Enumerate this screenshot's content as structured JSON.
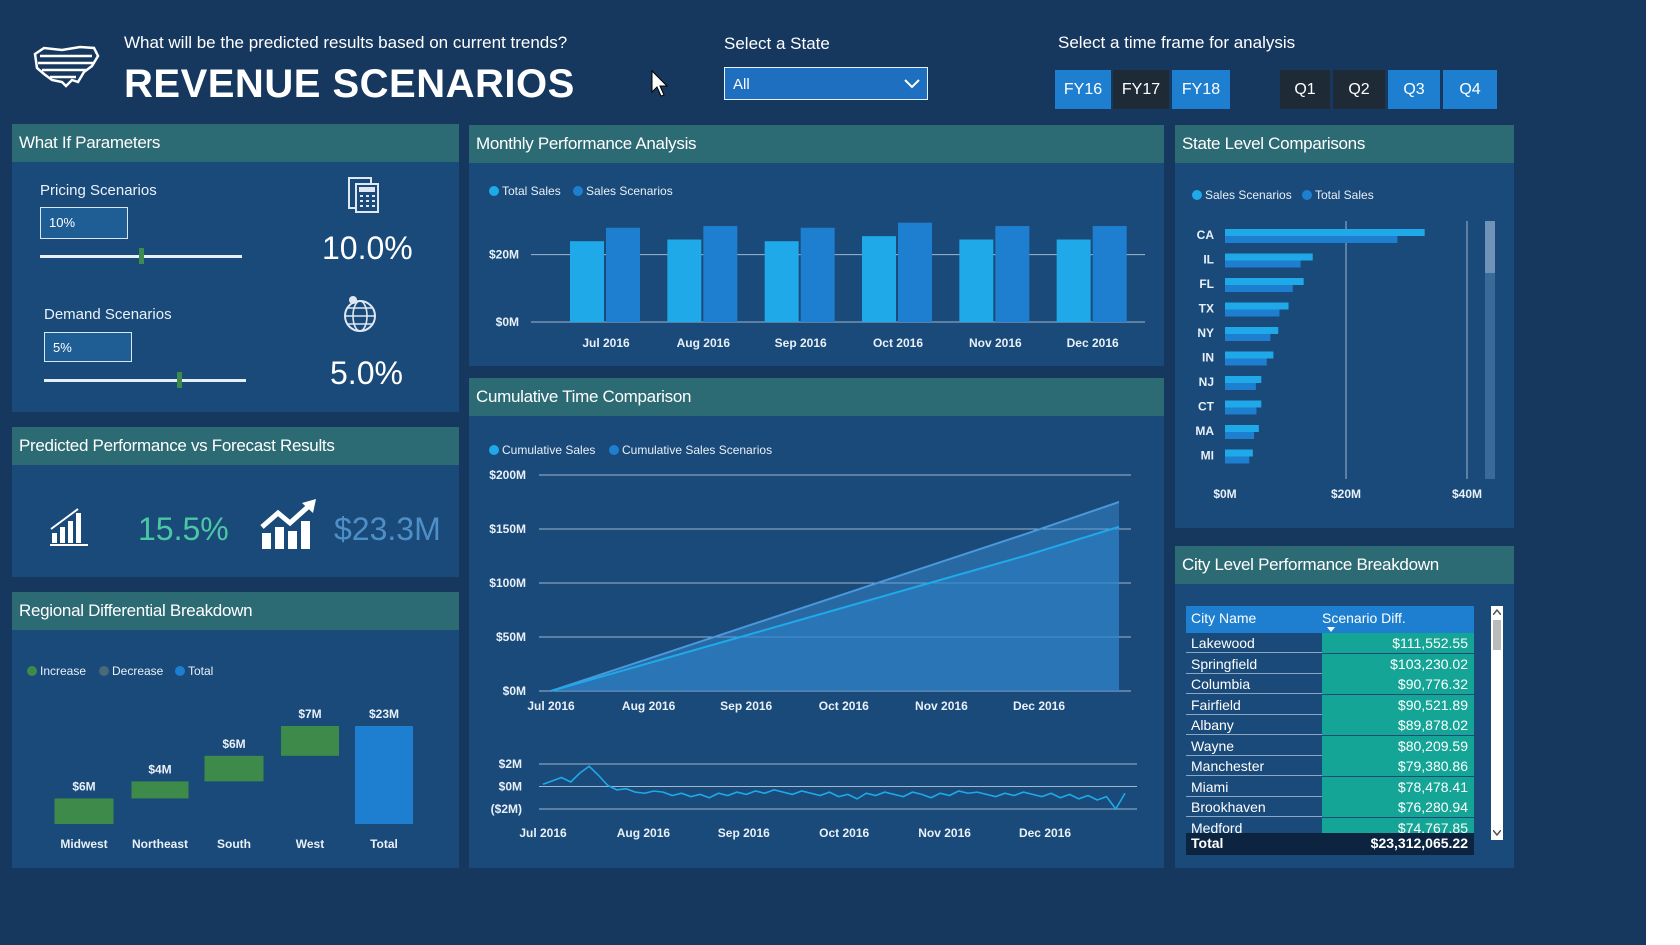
{
  "header": {
    "question": "What will be the predicted results based on current trends?",
    "title": "REVENUE SCENARIOS",
    "state_label": "Select a State",
    "state_value": "All",
    "timeframe_label": "Select a time frame for analysis",
    "years": [
      {
        "label": "FY16",
        "selected": true
      },
      {
        "label": "FY17",
        "selected": false
      },
      {
        "label": "FY18",
        "selected": true
      }
    ],
    "quarters": [
      {
        "label": "Q1",
        "selected": false
      },
      {
        "label": "Q2",
        "selected": false
      },
      {
        "label": "Q3",
        "selected": true
      },
      {
        "label": "Q4",
        "selected": true
      }
    ]
  },
  "whatif": {
    "title": "What If Parameters",
    "pricing_label": "Pricing Scenarios",
    "pricing_input": "10%",
    "pricing_value": "10.0%",
    "pricing_fraction": 0.5,
    "demand_label": "Demand Scenarios",
    "demand_input": "5%",
    "demand_value": "5.0%",
    "demand_fraction": 0.67
  },
  "predicted": {
    "title": "Predicted Performance vs Forecast Results",
    "percent": "15.5%",
    "amount": "$23.3M"
  },
  "regional": {
    "title": "Regional Differential Breakdown",
    "legend": [
      "Increase",
      "Decrease",
      "Total"
    ],
    "colors": {
      "increase": "#3d8a4a",
      "decrease": "#4a6a7a",
      "total": "#1e7fd0"
    }
  },
  "monthly": {
    "title": "Monthly Performance Analysis",
    "legend": [
      "Total Sales",
      "Sales Scenarios"
    ],
    "colors": {
      "total": "#1fa9e8",
      "scenario": "#1e7fd0"
    }
  },
  "cumulative": {
    "title": "Cumulative Time Comparison",
    "legend": [
      "Cumulative Sales",
      "Cumulative Sales Scenarios"
    ]
  },
  "state": {
    "title": "State Level Comparisons",
    "legend": [
      "Sales Scenarios",
      "Total Sales"
    ]
  },
  "city": {
    "title": "City Level Performance Breakdown",
    "columns": [
      "City Name",
      "Scenario Diff."
    ],
    "rows": [
      {
        "name": "Lakewood",
        "value": "$111,552.55"
      },
      {
        "name": "Springfield",
        "value": "$103,230.02"
      },
      {
        "name": "Columbia",
        "value": "$90,776.32"
      },
      {
        "name": "Fairfield",
        "value": "$90,521.89"
      },
      {
        "name": "Albany",
        "value": "$89,878.02"
      },
      {
        "name": "Wayne",
        "value": "$80,209.59"
      },
      {
        "name": "Manchester",
        "value": "$79,380.86"
      },
      {
        "name": "Miami",
        "value": "$78,478.41"
      },
      {
        "name": "Brookhaven",
        "value": "$76,280.94"
      },
      {
        "name": "Medford",
        "value": "$74,767.85"
      }
    ],
    "total_label": "Total",
    "total_value": "$23,312,065.22"
  },
  "chart_data": [
    {
      "type": "bar",
      "id": "monthly",
      "categories": [
        "Jul 2016",
        "Aug 2016",
        "Sep 2016",
        "Oct 2016",
        "Nov 2016",
        "Dec 2016"
      ],
      "series": [
        {
          "name": "Total Sales",
          "values": [
            24,
            24.5,
            24,
            25.5,
            24.5,
            24.5
          ]
        },
        {
          "name": "Sales Scenarios",
          "values": [
            28,
            28.5,
            28,
            29.5,
            28.5,
            28.5
          ]
        }
      ],
      "ytick_labels": [
        "$0M",
        "$20M"
      ],
      "yticks": [
        0,
        20
      ],
      "ylim": [
        0,
        30
      ]
    },
    {
      "type": "area",
      "id": "cumulative",
      "x": [
        "Jul 2016",
        "Aug 2016",
        "Sep 2016",
        "Oct 2016",
        "Nov 2016",
        "Dec 2016",
        "end"
      ],
      "xtick_labels": [
        "Jul 2016",
        "Aug 2016",
        "Sep 2016",
        "Oct 2016",
        "Nov 2016",
        "Dec 2016"
      ],
      "series": [
        {
          "name": "Cumulative Sales",
          "values": [
            0,
            25,
            50,
            75,
            100,
            125,
            152
          ]
        },
        {
          "name": "Cumulative Sales Scenarios",
          "values": [
            0,
            29,
            58,
            87,
            116,
            145,
            175
          ]
        }
      ],
      "ytick_labels": [
        "$0M",
        "$50M",
        "$100M",
        "$150M",
        "$200M"
      ],
      "yticks": [
        0,
        50,
        100,
        150,
        200
      ],
      "ylim": [
        0,
        200
      ]
    },
    {
      "type": "line",
      "id": "difference",
      "xtick_labels": [
        "Jul 2016",
        "Aug 2016",
        "Sep 2016",
        "Oct 2016",
        "Nov 2016",
        "Dec 2016"
      ],
      "values": [
        0.2,
        0.5,
        0.8,
        0.4,
        1.2,
        1.8,
        1.0,
        0.1,
        -0.3,
        -0.2,
        -0.5,
        -0.6,
        -0.4,
        -0.5,
        -0.8,
        -0.6,
        -0.9,
        -0.7,
        -1.0,
        -0.6,
        -0.8,
        -0.5,
        -0.7,
        -0.4,
        -0.6,
        -0.3,
        -0.5,
        -0.7,
        -0.4,
        -0.6,
        -0.8,
        -0.5,
        -0.9,
        -0.7,
        -1.1,
        -0.6,
        -0.8,
        -0.5,
        -0.7,
        -0.9,
        -0.5,
        -0.7,
        -1.0,
        -0.6,
        -0.8,
        -0.4,
        -0.6,
        -0.5,
        -0.7,
        -0.9,
        -0.6,
        -0.8,
        -0.5,
        -0.7,
        -0.9,
        -0.6,
        -1.0,
        -0.7,
        -1.1,
        -0.8,
        -1.2,
        -0.9,
        -2.0,
        -0.6
      ],
      "ytick_labels": [
        "($2M)",
        "$0M",
        "$2M"
      ],
      "yticks": [
        -2,
        0,
        2
      ],
      "ylim": [
        -2,
        2
      ]
    },
    {
      "type": "bar",
      "id": "state",
      "orientation": "horizontal",
      "categories": [
        "CA",
        "IL",
        "FL",
        "TX",
        "NY",
        "IN",
        "NJ",
        "CT",
        "MA",
        "MI"
      ],
      "series": [
        {
          "name": "Sales Scenarios",
          "values": [
            33,
            14.5,
            13,
            10.5,
            8.8,
            8.0,
            6.0,
            6.0,
            5.6,
            4.6
          ]
        },
        {
          "name": "Total Sales",
          "values": [
            28.5,
            12.5,
            11.2,
            9.0,
            7.5,
            6.9,
            5.1,
            5.2,
            4.8,
            4.0
          ]
        }
      ],
      "xtick_labels": [
        "$0M",
        "$20M",
        "$40M"
      ],
      "xticks": [
        0,
        20,
        40
      ],
      "xlim": [
        0,
        42
      ]
    },
    {
      "type": "bar",
      "id": "regional",
      "subtype": "waterfall",
      "categories": [
        "Midwest",
        "Northeast",
        "South",
        "West",
        "Total"
      ],
      "values": [
        6,
        4,
        6,
        7,
        23
      ],
      "data_labels": [
        "$6M",
        "$4M",
        "$6M",
        "$7M",
        "$23M"
      ],
      "kinds": [
        "increase",
        "increase",
        "increase",
        "increase",
        "total"
      ],
      "ylim": [
        0,
        23
      ]
    }
  ]
}
